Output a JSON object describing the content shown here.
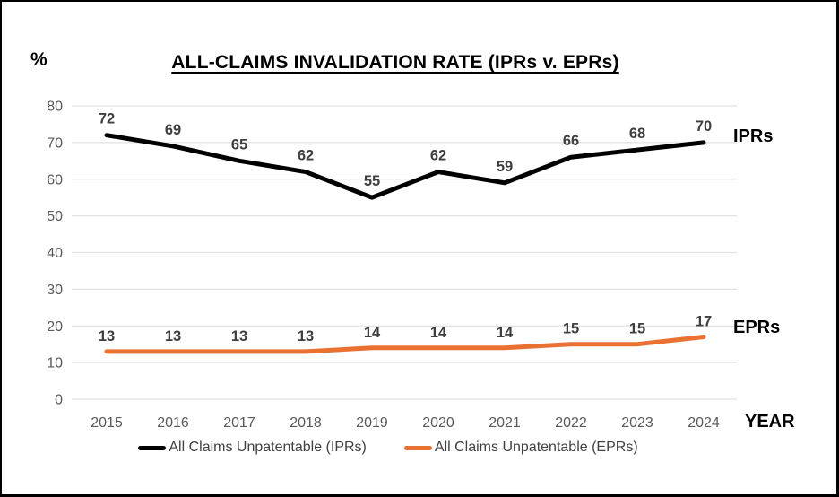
{
  "chart_data": {
    "type": "line",
    "title": "ALL-CLAIMS INVALIDATION RATE (IPRs v. EPRs)",
    "xlabel": "YEAR",
    "ylabel": "%",
    "categories": [
      "2015",
      "2016",
      "2017",
      "2018",
      "2019",
      "2020",
      "2021",
      "2022",
      "2023",
      "2024"
    ],
    "series": [
      {
        "name": "All Claims Unpatentable (IPRs)",
        "end_label": "IPRs",
        "color": "#000000",
        "values": [
          72,
          69,
          65,
          62,
          55,
          62,
          59,
          66,
          68,
          70
        ]
      },
      {
        "name": "All Claims Unpatentable (EPRs)",
        "end_label": "EPRs",
        "color": "#E97132",
        "values": [
          13,
          13,
          13,
          13,
          14,
          14,
          14,
          15,
          15,
          17
        ]
      }
    ],
    "ylim": [
      0,
      80
    ],
    "y_ticks": [
      0,
      10,
      20,
      30,
      40,
      50,
      60,
      70,
      80
    ],
    "grid": true,
    "data_labels": true,
    "legend_position": "bottom"
  }
}
